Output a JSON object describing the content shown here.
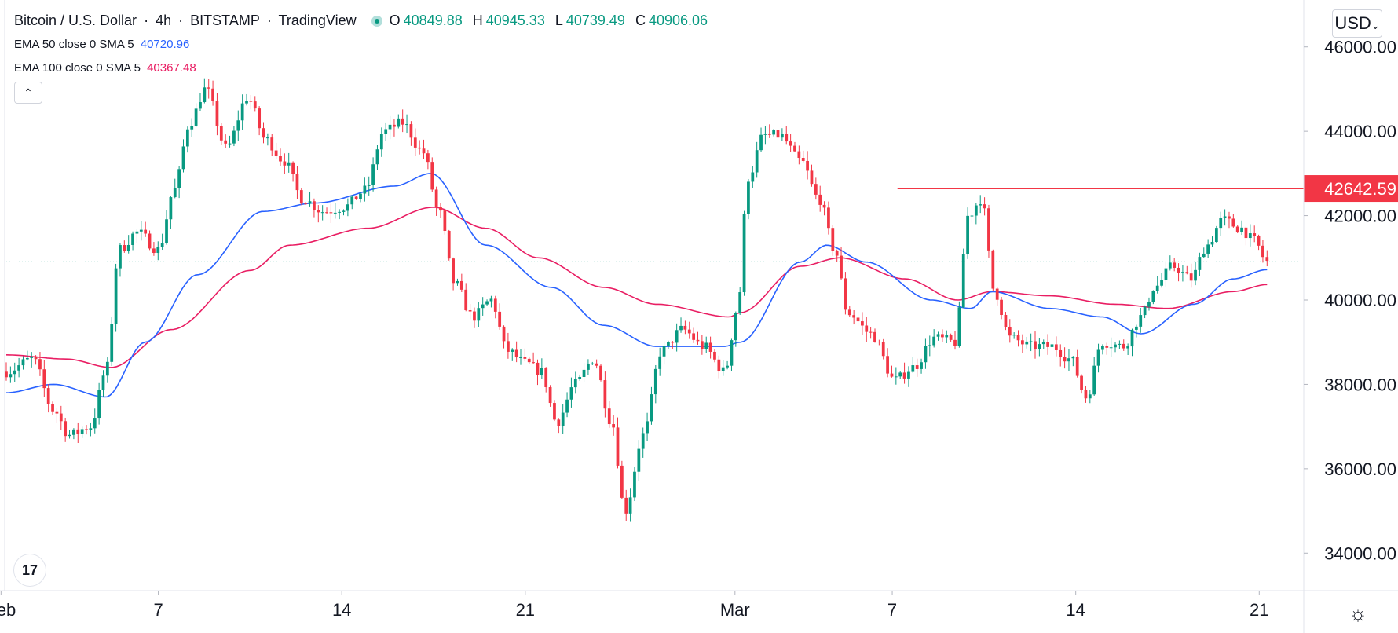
{
  "header": {
    "symbol": "Bitcoin / U.S. Dollar",
    "interval": "4h",
    "exchange": "BITSTAMP",
    "provider": "TradingView",
    "ohlc": {
      "o_label": "O",
      "o_value": "40849.88",
      "h_label": "H",
      "h_value": "40945.33",
      "l_label": "L",
      "l_value": "40739.49",
      "c_label": "C",
      "c_value": "40906.06"
    }
  },
  "indicators": [
    {
      "label": "EMA 50 close 0 SMA 5",
      "value": "40720.96",
      "color": "#2962ff"
    },
    {
      "label": "EMA 100 close 0 SMA 5",
      "value": "40367.48",
      "color": "#e91e63"
    }
  ],
  "currency": "USD",
  "logo_text": "17",
  "chart_data": {
    "type": "candlestick",
    "title": "Bitcoin / U.S. Dollar, 4h, BITSTAMP",
    "ylim": [
      33000,
      47000
    ],
    "y_ticks": [
      "46000.00",
      "44000.00",
      "42000.00",
      "40000.00",
      "38000.00",
      "36000.00",
      "34000.00"
    ],
    "y_tick_values": [
      46000,
      44000,
      42000,
      40000,
      38000,
      36000,
      34000
    ],
    "x_ticks": [
      "Feb",
      "7",
      "14",
      "21",
      "Mar",
      "7",
      "14",
      "21"
    ],
    "x_tick_days": [
      1,
      7,
      14,
      21,
      29,
      35,
      42,
      49
    ],
    "x_range_days": [
      1.2,
      50.1
    ],
    "last_price": 40906.06,
    "resistance_line": {
      "price": 42642.59,
      "label": "42642.59",
      "start_day": 35.2,
      "color": "#f23645"
    },
    "close_anchors": [
      [
        1.2,
        38300
      ],
      [
        2.2,
        38600
      ],
      [
        3.0,
        37400
      ],
      [
        3.6,
        36800
      ],
      [
        4.4,
        37000
      ],
      [
        5.0,
        38300
      ],
      [
        5.5,
        41200
      ],
      [
        6.2,
        41600
      ],
      [
        7.0,
        41200
      ],
      [
        7.6,
        42600
      ],
      [
        8.2,
        44200
      ],
      [
        8.8,
        45000
      ],
      [
        9.6,
        43600
      ],
      [
        10.4,
        44800
      ],
      [
        11.1,
        43800
      ],
      [
        11.8,
        43300
      ],
      [
        12.5,
        42400
      ],
      [
        13.3,
        42100
      ],
      [
        14.1,
        42200
      ],
      [
        14.9,
        42600
      ],
      [
        15.6,
        44000
      ],
      [
        16.3,
        44200
      ],
      [
        17.1,
        43500
      ],
      [
        17.7,
        42100
      ],
      [
        18.3,
        40400
      ],
      [
        19.0,
        39600
      ],
      [
        19.7,
        40000
      ],
      [
        20.3,
        38800
      ],
      [
        21.0,
        38500
      ],
      [
        21.6,
        38300
      ],
      [
        22.2,
        37100
      ],
      [
        22.9,
        38000
      ],
      [
        23.6,
        38600
      ],
      [
        24.3,
        37100
      ],
      [
        24.8,
        35000
      ],
      [
        25.5,
        36800
      ],
      [
        26.2,
        38800
      ],
      [
        27.0,
        39300
      ],
      [
        27.8,
        38900
      ],
      [
        28.6,
        38300
      ],
      [
        29.1,
        39800
      ],
      [
        29.5,
        42900
      ],
      [
        30.1,
        43900
      ],
      [
        30.7,
        43900
      ],
      [
        31.5,
        43300
      ],
      [
        32.2,
        42400
      ],
      [
        32.8,
        41200
      ],
      [
        33.3,
        39700
      ],
      [
        34.2,
        39200
      ],
      [
        35.1,
        38100
      ],
      [
        35.8,
        38400
      ],
      [
        36.6,
        39100
      ],
      [
        37.4,
        39000
      ],
      [
        37.9,
        42000
      ],
      [
        38.4,
        42400
      ],
      [
        38.9,
        40200
      ],
      [
        39.5,
        39100
      ],
      [
        40.3,
        38900
      ],
      [
        41.1,
        38900
      ],
      [
        41.8,
        38600
      ],
      [
        42.4,
        37700
      ],
      [
        43.0,
        39000
      ],
      [
        43.8,
        38900
      ],
      [
        44.5,
        39600
      ],
      [
        45.0,
        40300
      ],
      [
        45.7,
        40800
      ],
      [
        46.4,
        40500
      ],
      [
        47.0,
        41300
      ],
      [
        47.6,
        41900
      ],
      [
        48.3,
        41700
      ],
      [
        48.8,
        41400
      ],
      [
        49.3,
        40906
      ]
    ],
    "ema50_anchors": [
      [
        1.2,
        37800
      ],
      [
        3.0,
        38000
      ],
      [
        5.0,
        37700
      ],
      [
        6.5,
        39000
      ],
      [
        8.5,
        40600
      ],
      [
        11.0,
        42100
      ],
      [
        13.0,
        42300
      ],
      [
        16.0,
        42700
      ],
      [
        17.4,
        43000
      ],
      [
        19.5,
        41300
      ],
      [
        22.0,
        40300
      ],
      [
        24.0,
        39400
      ],
      [
        26.0,
        38900
      ],
      [
        28.6,
        38900
      ],
      [
        29.2,
        39000
      ],
      [
        31.5,
        40900
      ],
      [
        32.5,
        41300
      ],
      [
        34.0,
        40900
      ],
      [
        36.5,
        40000
      ],
      [
        38.0,
        39800
      ],
      [
        38.8,
        40200
      ],
      [
        41.0,
        39800
      ],
      [
        43.0,
        39600
      ],
      [
        44.5,
        39200
      ],
      [
        46.5,
        39900
      ],
      [
        48.0,
        40500
      ],
      [
        49.3,
        40721
      ]
    ],
    "ema100_anchors": [
      [
        1.2,
        38700
      ],
      [
        3.5,
        38600
      ],
      [
        5.2,
        38400
      ],
      [
        7.5,
        39300
      ],
      [
        10.5,
        40700
      ],
      [
        12.0,
        41300
      ],
      [
        15.0,
        41700
      ],
      [
        17.5,
        42200
      ],
      [
        19.5,
        41700
      ],
      [
        21.5,
        41000
      ],
      [
        24.0,
        40300
      ],
      [
        26.0,
        39900
      ],
      [
        28.8,
        39600
      ],
      [
        29.2,
        39700
      ],
      [
        31.5,
        40800
      ],
      [
        33.0,
        41000
      ],
      [
        35.5,
        40500
      ],
      [
        37.5,
        40000
      ],
      [
        38.8,
        40200
      ],
      [
        41.0,
        40100
      ],
      [
        43.5,
        39900
      ],
      [
        45.5,
        39800
      ],
      [
        48.0,
        40200
      ],
      [
        49.3,
        40367
      ]
    ],
    "colors": {
      "up": "#089981",
      "down": "#f23645",
      "ema50": "#2962ff",
      "ema100": "#e91e63"
    }
  }
}
